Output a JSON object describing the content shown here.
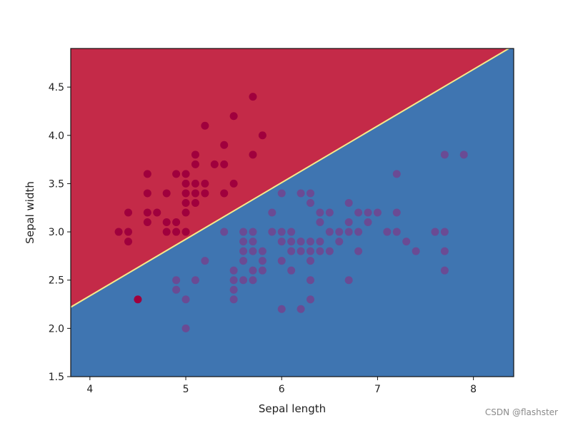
{
  "chart_data": {
    "type": "scatter",
    "title": "",
    "xlabel": "Sepal length",
    "ylabel": "Sepal width",
    "xlim": [
      3.8,
      8.42
    ],
    "ylim": [
      1.5,
      4.9
    ],
    "xticks": [
      4,
      5,
      6,
      7,
      8
    ],
    "xtick_labels": [
      "4",
      "5",
      "6",
      "7",
      "8"
    ],
    "yticks": [
      1.5,
      2.0,
      2.5,
      3.0,
      3.5,
      4.0,
      4.5
    ],
    "ytick_labels": [
      "1.5",
      "2.0",
      "2.5",
      "3.0",
      "3.5",
      "4.0",
      "4.5"
    ],
    "grid": false,
    "decision_boundary": {
      "line": [
        [
          3.8,
          2.22
        ],
        [
          8.42,
          4.93
        ]
      ],
      "color": "#f5e98a",
      "upper_region_color": "#c42a48",
      "lower_region_color": "#3f75b1"
    },
    "series": [
      {
        "color": "#a0003d",
        "points": [
          [
            4.3,
            3.0
          ],
          [
            4.4,
            2.9
          ],
          [
            4.4,
            3.0
          ],
          [
            4.4,
            3.2
          ],
          [
            4.5,
            2.3
          ],
          [
            4.6,
            3.1
          ],
          [
            4.6,
            3.2
          ],
          [
            4.6,
            3.4
          ],
          [
            4.6,
            3.6
          ],
          [
            4.7,
            3.2
          ],
          [
            4.8,
            3.0
          ],
          [
            4.8,
            3.1
          ],
          [
            4.8,
            3.4
          ],
          [
            4.9,
            3.0
          ],
          [
            4.9,
            3.1
          ],
          [
            4.9,
            3.6
          ],
          [
            5.0,
            3.0
          ],
          [
            5.0,
            3.2
          ],
          [
            5.0,
            3.3
          ],
          [
            5.0,
            3.4
          ],
          [
            5.0,
            3.5
          ],
          [
            5.0,
            3.6
          ],
          [
            5.1,
            3.3
          ],
          [
            5.1,
            3.4
          ],
          [
            5.1,
            3.5
          ],
          [
            5.1,
            3.7
          ],
          [
            5.1,
            3.8
          ],
          [
            5.2,
            3.4
          ],
          [
            5.2,
            3.5
          ],
          [
            5.2,
            4.1
          ],
          [
            5.3,
            3.7
          ],
          [
            5.4,
            3.4
          ],
          [
            5.4,
            3.7
          ],
          [
            5.4,
            3.9
          ],
          [
            5.5,
            3.5
          ],
          [
            5.5,
            4.2
          ],
          [
            5.7,
            3.8
          ],
          [
            5.7,
            4.4
          ],
          [
            5.8,
            4.0
          ]
        ]
      },
      {
        "color": "#6a4b94",
        "points": [
          [
            4.9,
            2.4
          ],
          [
            4.9,
            2.5
          ],
          [
            5.0,
            2.0
          ],
          [
            5.0,
            2.3
          ],
          [
            5.1,
            2.5
          ],
          [
            5.2,
            2.7
          ],
          [
            5.4,
            3.0
          ],
          [
            5.5,
            2.3
          ],
          [
            5.5,
            2.4
          ],
          [
            5.5,
            2.5
          ],
          [
            5.5,
            2.6
          ],
          [
            5.6,
            2.5
          ],
          [
            5.6,
            2.7
          ],
          [
            5.6,
            2.8
          ],
          [
            5.6,
            2.9
          ],
          [
            5.6,
            3.0
          ],
          [
            5.7,
            2.5
          ],
          [
            5.7,
            2.6
          ],
          [
            5.7,
            2.8
          ],
          [
            5.7,
            2.9
          ],
          [
            5.7,
            3.0
          ],
          [
            5.8,
            2.6
          ],
          [
            5.8,
            2.7
          ],
          [
            5.8,
            2.8
          ],
          [
            5.9,
            3.0
          ],
          [
            5.9,
            3.2
          ],
          [
            6.0,
            2.2
          ],
          [
            6.0,
            2.7
          ],
          [
            6.0,
            2.9
          ],
          [
            6.0,
            3.0
          ],
          [
            6.0,
            3.4
          ],
          [
            6.1,
            2.6
          ],
          [
            6.1,
            2.8
          ],
          [
            6.1,
            2.9
          ],
          [
            6.1,
            3.0
          ],
          [
            6.2,
            2.2
          ],
          [
            6.2,
            2.8
          ],
          [
            6.2,
            2.9
          ],
          [
            6.2,
            3.4
          ],
          [
            6.3,
            2.3
          ],
          [
            6.3,
            2.5
          ],
          [
            6.3,
            2.7
          ],
          [
            6.3,
            2.8
          ],
          [
            6.3,
            2.9
          ],
          [
            6.3,
            3.3
          ],
          [
            6.3,
            3.4
          ],
          [
            6.4,
            2.8
          ],
          [
            6.4,
            2.9
          ],
          [
            6.4,
            3.1
          ],
          [
            6.4,
            3.2
          ],
          [
            6.5,
            2.8
          ],
          [
            6.5,
            3.0
          ],
          [
            6.5,
            3.2
          ],
          [
            6.6,
            2.9
          ],
          [
            6.6,
            3.0
          ],
          [
            6.7,
            2.5
          ],
          [
            6.7,
            3.0
          ],
          [
            6.7,
            3.1
          ],
          [
            6.7,
            3.3
          ],
          [
            6.8,
            2.8
          ],
          [
            6.8,
            3.0
          ],
          [
            6.8,
            3.2
          ],
          [
            6.9,
            3.1
          ],
          [
            6.9,
            3.2
          ],
          [
            7.0,
            3.2
          ],
          [
            7.1,
            3.0
          ],
          [
            7.2,
            3.0
          ],
          [
            7.2,
            3.2
          ],
          [
            7.2,
            3.6
          ],
          [
            7.3,
            2.9
          ],
          [
            7.4,
            2.8
          ],
          [
            7.6,
            3.0
          ],
          [
            7.7,
            2.6
          ],
          [
            7.7,
            2.8
          ],
          [
            7.7,
            3.0
          ],
          [
            7.7,
            3.8
          ],
          [
            7.9,
            3.8
          ]
        ]
      }
    ]
  },
  "watermark": "CSDN @flashster"
}
